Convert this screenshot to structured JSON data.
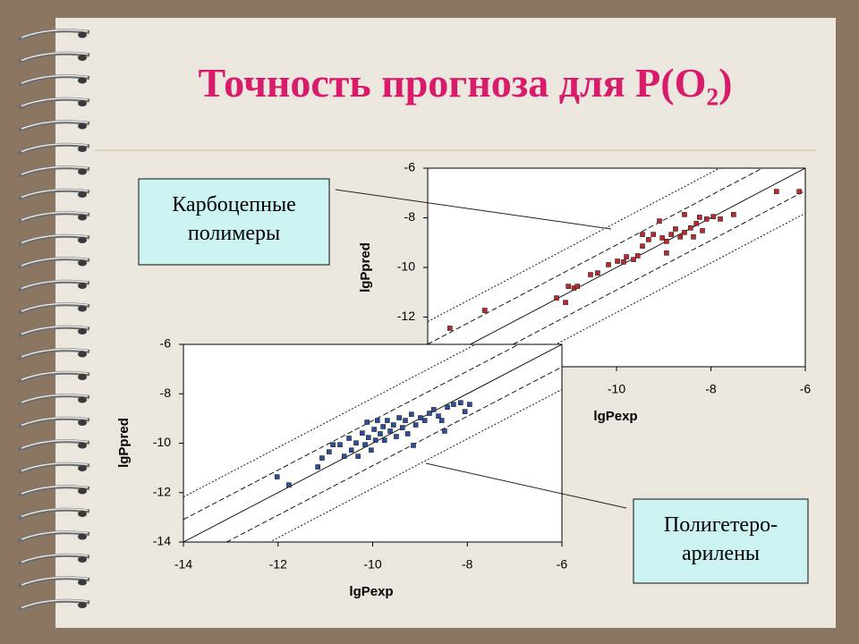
{
  "title": "Точность прогноза для  P(O₂)",
  "chart_data": [
    {
      "type": "scatter",
      "color": "#c0282d",
      "xlabel": "lgPexp",
      "ylabel": "lgPpred",
      "xlim": [
        -14,
        -6
      ],
      "ylim": [
        -14,
        -6
      ],
      "xticks": [
        -10,
        -8,
        -6
      ],
      "yticks": [
        -12,
        -10,
        -8,
        -6
      ],
      "annotation": [
        "Карбоцепные",
        "полимеры"
      ],
      "x": [
        -13.53,
        -12.79,
        -11.27,
        -11.08,
        -11.02,
        -10.9,
        -10.83,
        -10.55,
        -10.4,
        -10.17,
        -9.98,
        -9.85,
        -9.79,
        -9.64,
        -9.55,
        -9.45,
        -9.45,
        -9.32,
        -9.22,
        -9.09,
        -9.03,
        -8.94,
        -8.94,
        -8.84,
        -8.75,
        -8.65,
        -8.56,
        -8.56,
        -8.43,
        -8.37,
        -8.31,
        -8.24,
        -8.18,
        -8.09,
        -7.95,
        -7.8,
        -7.52,
        -6.61,
        -6.13
      ],
      "values": [
        -12.45,
        -11.73,
        -11.23,
        -11.41,
        -10.76,
        -10.83,
        -10.76,
        -10.29,
        -10.22,
        -9.89,
        -9.75,
        -9.78,
        -9.57,
        -9.68,
        -9.53,
        -8.67,
        -9.14,
        -8.88,
        -8.67,
        -8.13,
        -8.81,
        -8.95,
        -9.42,
        -8.67,
        -8.45,
        -8.77,
        -8.59,
        -7.87,
        -8.41,
        -8.77,
        -8.23,
        -7.98,
        -8.52,
        -8.05,
        -7.95,
        -8.05,
        -7.87,
        -6.94,
        -6.94
      ]
    },
    {
      "type": "scatter",
      "color": "#2d4f9a",
      "xlabel": "lgPexp",
      "ylabel": "lgPpred",
      "xlim": [
        -14,
        -6
      ],
      "ylim": [
        -14,
        -6
      ],
      "xticks": [
        -14,
        -12,
        -10,
        -8,
        -6
      ],
      "yticks": [
        -14,
        -12,
        -10,
        -8,
        -6
      ],
      "annotation": [
        "Полигетеро-",
        "арилены"
      ],
      "x": [
        -12.02,
        -11.77,
        -11.16,
        -11.07,
        -10.92,
        -10.84,
        -10.69,
        -10.6,
        -10.5,
        -10.45,
        -10.35,
        -10.31,
        -10.22,
        -10.16,
        -10.12,
        -10.09,
        -10.03,
        -9.97,
        -9.94,
        -9.9,
        -9.84,
        -9.78,
        -9.75,
        -9.69,
        -9.63,
        -9.56,
        -9.5,
        -9.44,
        -9.37,
        -9.31,
        -9.26,
        -9.18,
        -9.14,
        -9.09,
        -8.99,
        -8.9,
        -8.8,
        -8.71,
        -8.61,
        -8.54,
        -8.48,
        -8.42,
        -8.29,
        -8.14,
        -8.05,
        -7.95
      ],
      "values": [
        -11.36,
        -11.69,
        -10.96,
        -10.6,
        -10.35,
        -10.06,
        -10.06,
        -10.53,
        -9.8,
        -10.28,
        -9.99,
        -10.53,
        -9.59,
        -10.06,
        -9.15,
        -9.77,
        -10.28,
        -9.44,
        -9.88,
        -9.08,
        -9.62,
        -9.33,
        -9.88,
        -9.08,
        -9.51,
        -9.26,
        -9.73,
        -8.97,
        -9.37,
        -9.08,
        -9.62,
        -8.83,
        -10.09,
        -9.26,
        -8.97,
        -9.08,
        -8.79,
        -8.64,
        -8.9,
        -9.08,
        -9.51,
        -8.54,
        -8.43,
        -8.36,
        -8.72,
        -8.43
      ]
    }
  ]
}
